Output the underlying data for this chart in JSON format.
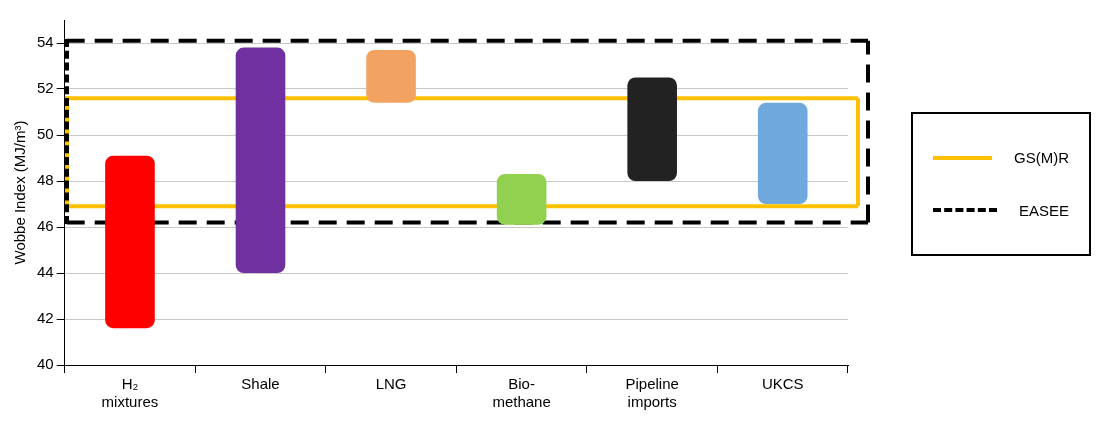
{
  "chart_data": {
    "type": "bar",
    "ylabel": "Wobbe Index (MJ/m³)",
    "categories": [
      "H₂\nmixtures",
      "Shale",
      "LNG",
      "Bio-\nmethane",
      "Pipeline\nimports",
      "UKCS"
    ],
    "base": [
      41.6,
      44.0,
      51.4,
      46.1,
      48.0,
      47.0
    ],
    "values": [
      7.5,
      9.8,
      2.3,
      2.2,
      4.5,
      4.4
    ],
    "colors": [
      "#ff0000",
      "#7030a0",
      "#f4a261",
      "#92d050",
      "#222222",
      "#6fa8dc"
    ],
    "ylim": [
      40,
      55
    ],
    "yticks": [
      40,
      42,
      44,
      46,
      48,
      50,
      52,
      54
    ],
    "grid": "y",
    "ref_lines": [
      {
        "axis": "y",
        "value": 46.9,
        "label": "GS(M)R",
        "color": "#ffc000",
        "line_style": "solid"
      },
      {
        "axis": "y",
        "value": 51.6,
        "color": "#ffc000",
        "line_style": "solid"
      },
      {
        "axis": "y",
        "value": 46.2,
        "label": "EASEE",
        "color": "#000000",
        "line_style": "dashed"
      },
      {
        "axis": "y",
        "value": 54.1,
        "color": "#000000",
        "line_style": "dashed"
      }
    ],
    "legend": "right"
  }
}
